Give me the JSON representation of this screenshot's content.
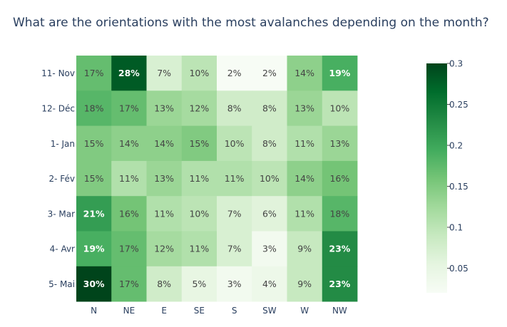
{
  "chart_data": {
    "type": "heatmap",
    "title": "What are the orientations with the most avalanches depending on the month?",
    "x": [
      "N",
      "NE",
      "E",
      "SE",
      "S",
      "SW",
      "W",
      "NW"
    ],
    "y": [
      "11- Nov",
      "12- Déc",
      "1- Jan",
      "2- Fév",
      "3- Mar",
      "4- Avr",
      "5- Mai"
    ],
    "z": [
      [
        0.17,
        0.28,
        0.07,
        0.1,
        0.02,
        0.02,
        0.14,
        0.19
      ],
      [
        0.18,
        0.17,
        0.13,
        0.12,
        0.08,
        0.08,
        0.13,
        0.1
      ],
      [
        0.15,
        0.14,
        0.14,
        0.15,
        0.1,
        0.08,
        0.11,
        0.13
      ],
      [
        0.15,
        0.11,
        0.13,
        0.11,
        0.11,
        0.1,
        0.14,
        0.16
      ],
      [
        0.21,
        0.16,
        0.11,
        0.1,
        0.07,
        0.06,
        0.11,
        0.18
      ],
      [
        0.19,
        0.17,
        0.12,
        0.11,
        0.07,
        0.03,
        0.09,
        0.23
      ],
      [
        0.3,
        0.17,
        0.08,
        0.05,
        0.03,
        0.04,
        0.09,
        0.23
      ]
    ],
    "text": [
      [
        "17%",
        "28%",
        "7%",
        "10%",
        "2%",
        "2%",
        "14%",
        "19%"
      ],
      [
        "18%",
        "17%",
        "13%",
        "12%",
        "8%",
        "8%",
        "13%",
        "10%"
      ],
      [
        "15%",
        "14%",
        "14%",
        "15%",
        "10%",
        "8%",
        "11%",
        "13%"
      ],
      [
        "15%",
        "11%",
        "13%",
        "11%",
        "11%",
        "10%",
        "14%",
        "16%"
      ],
      [
        "21%",
        "16%",
        "11%",
        "10%",
        "7%",
        "6%",
        "11%",
        "18%"
      ],
      [
        "19%",
        "17%",
        "12%",
        "11%",
        "7%",
        "3%",
        "9%",
        "23%"
      ],
      [
        "30%",
        "17%",
        "8%",
        "5%",
        "3%",
        "4%",
        "9%",
        "23%"
      ]
    ],
    "colorscale": "Greens",
    "zmin": 0.02,
    "zmax": 0.3,
    "colorbar_ticks": [
      0.05,
      0.1,
      0.15,
      0.2,
      0.25,
      0.3
    ],
    "colorbar_tick_labels": [
      "0.05",
      "0.1",
      "0.15",
      "0.2",
      "0.25",
      "0.3"
    ]
  }
}
